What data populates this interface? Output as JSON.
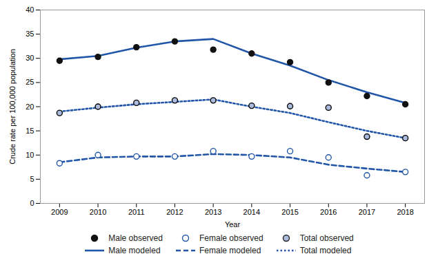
{
  "chart_data": {
    "type": "line",
    "xlabel": "Year",
    "ylabel": "Crude rate per 100,000 population",
    "x": [
      2009,
      2010,
      2011,
      2012,
      2013,
      2014,
      2015,
      2016,
      2017,
      2018
    ],
    "xlim": [
      2008.5,
      2018.5
    ],
    "xticks": [
      2009,
      2010,
      2011,
      2012,
      2013,
      2014,
      2015,
      2016,
      2017,
      2018
    ],
    "ylim": [
      0,
      40
    ],
    "yticks": [
      0,
      5,
      10,
      15,
      20,
      25,
      30,
      35,
      40
    ],
    "grid": false,
    "legend": "bottom",
    "series": [
      {
        "name": "Male observed",
        "type": "scatter",
        "marker": "circle",
        "color": "#111111",
        "values": [
          29.5,
          30.3,
          32.3,
          33.5,
          31.8,
          31.0,
          29.2,
          25.0,
          22.2,
          20.5
        ]
      },
      {
        "name": "Female observed",
        "type": "scatter",
        "marker": "open_circle",
        "color": "#2155a8",
        "values": [
          8.3,
          10.0,
          9.7,
          9.7,
          10.8,
          9.7,
          10.8,
          9.5,
          5.8,
          6.5
        ]
      },
      {
        "name": "Total observed",
        "type": "scatter",
        "marker": "edged_circle",
        "color": "#aabbdd",
        "values": [
          18.7,
          20.0,
          20.8,
          21.3,
          21.3,
          20.2,
          20.1,
          19.8,
          13.8,
          13.5
        ]
      },
      {
        "name": "Male modeled",
        "type": "line",
        "line_style": "solid",
        "color": "#2155a8",
        "values": [
          29.8,
          30.5,
          32.2,
          33.5,
          34.0,
          31.0,
          28.5,
          25.5,
          23.0,
          20.8
        ]
      },
      {
        "name": "Female modeled",
        "type": "line",
        "line_style": "dashed",
        "color": "#2155a8",
        "values": [
          8.5,
          9.5,
          9.7,
          9.7,
          10.2,
          10.0,
          9.5,
          8.0,
          7.2,
          6.5
        ]
      },
      {
        "name": "Total modeled",
        "type": "line",
        "line_style": "dotted",
        "color": "#2155a8",
        "values": [
          19.0,
          19.8,
          20.5,
          21.0,
          21.5,
          20.0,
          18.7,
          16.8,
          15.0,
          13.5
        ]
      }
    ]
  }
}
